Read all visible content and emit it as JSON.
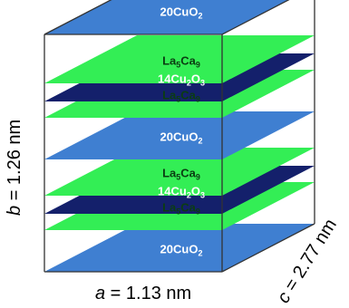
{
  "layers": [
    {
      "kind": "cuo2",
      "label_main": "20CuO",
      "label_sub": "2",
      "label_tail": "",
      "color": "#3f7fd1",
      "text_color": "#ffffff"
    },
    {
      "kind": "la5ca9",
      "label_main": "La",
      "label_sub": "5",
      "label_tail": "Ca",
      "label_sub2": "9",
      "color": "#33ee55",
      "text_color": "#0b3d12"
    },
    {
      "kind": "cu2o3",
      "label_main": "14Cu",
      "label_sub": "2",
      "label_tail": "O",
      "label_sub2": "3",
      "color": "#14206b",
      "text_color": "#ffffff"
    },
    {
      "kind": "la5ca9",
      "label_main": "La",
      "label_sub": "5",
      "label_tail": "Ca",
      "label_sub2": "9",
      "color": "#33ee55",
      "text_color": "#0b3d12"
    },
    {
      "kind": "cuo2",
      "label_main": "20CuO",
      "label_sub": "2",
      "label_tail": "",
      "color": "#3f7fd1",
      "text_color": "#ffffff"
    },
    {
      "kind": "la5ca9",
      "label_main": "La",
      "label_sub": "5",
      "label_tail": "Ca",
      "label_sub2": "9",
      "color": "#33ee55",
      "text_color": "#0b3d12"
    },
    {
      "kind": "cu2o3",
      "label_main": "14Cu",
      "label_sub": "2",
      "label_tail": "O",
      "label_sub2": "3",
      "color": "#14206b",
      "text_color": "#ffffff"
    },
    {
      "kind": "la5ca9",
      "label_main": "La",
      "label_sub": "5",
      "label_tail": "Ca",
      "label_sub2": "9",
      "color": "#33ee55",
      "text_color": "#0b3d12"
    },
    {
      "kind": "cuo2",
      "label_main": "20CuO",
      "label_sub": "2",
      "label_tail": "",
      "color": "#3f7fd1",
      "text_color": "#ffffff"
    }
  ],
  "axes": {
    "a": {
      "symbol": "a",
      "value": " = 1.13 nm"
    },
    "b": {
      "symbol": "b",
      "value": " = 1.26 nm"
    },
    "c": {
      "symbol": "c",
      "value": " = 2.77 nm"
    }
  },
  "colors": {
    "box_line": "#333333"
  }
}
